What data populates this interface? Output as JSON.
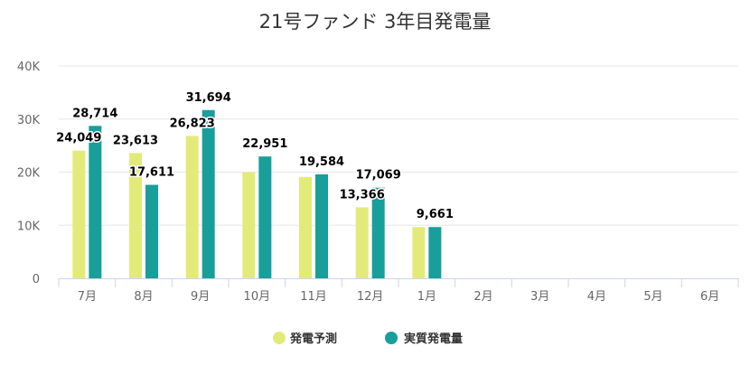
{
  "chart_data": {
    "type": "bar",
    "title": "21号ファンド 3年目発電量",
    "categories": [
      "7月",
      "8月",
      "9月",
      "10月",
      "11月",
      "12月",
      "1月",
      "2月",
      "3月",
      "4月",
      "5月",
      "6月"
    ],
    "series": [
      {
        "name": "発電予測",
        "color": "#e2eb7a",
        "values": [
          24049,
          23613,
          26823,
          20000,
          19100,
          13366,
          9661,
          null,
          null,
          null,
          null,
          null
        ],
        "labels": [
          "24,049",
          "23,613",
          "26,823",
          "",
          "",
          "13,366",
          "",
          "",
          "",
          "",
          "",
          ""
        ]
      },
      {
        "name": "実質発電量",
        "color": "#189e9b",
        "values": [
          28714,
          17611,
          31694,
          22951,
          19584,
          17069,
          9661,
          null,
          null,
          null,
          null,
          null
        ],
        "labels": [
          "28,714",
          "17,611",
          "31,694",
          "22,951",
          "19,584",
          "17,069",
          "9,661",
          "",
          "",
          "",
          "",
          ""
        ]
      }
    ],
    "y_ticks": [
      "0",
      "10K",
      "20K",
      "30K",
      "40K"
    ],
    "ylim": [
      0,
      40000
    ],
    "grid": true,
    "legend": "bottom-center"
  }
}
